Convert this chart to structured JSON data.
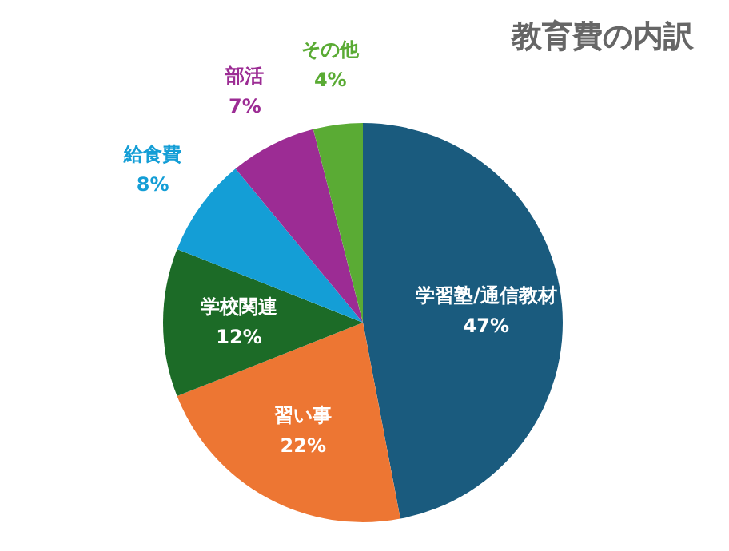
{
  "chart_data": {
    "type": "pie",
    "title": "教育費の内訳",
    "categories": [
      "学習塾/通信教材",
      "習い事",
      "学校関連",
      "給食費",
      "部活",
      "その他"
    ],
    "values": [
      47,
      22,
      12,
      8,
      7,
      4
    ],
    "value_labels": [
      "47%",
      "22%",
      "12%",
      "8%",
      "7%",
      "4%"
    ],
    "colors": [
      "#1a5b7e",
      "#ed7633",
      "#1c6b27",
      "#149ed6",
      "#9c2c94",
      "#5aab34"
    ],
    "legend": false
  }
}
